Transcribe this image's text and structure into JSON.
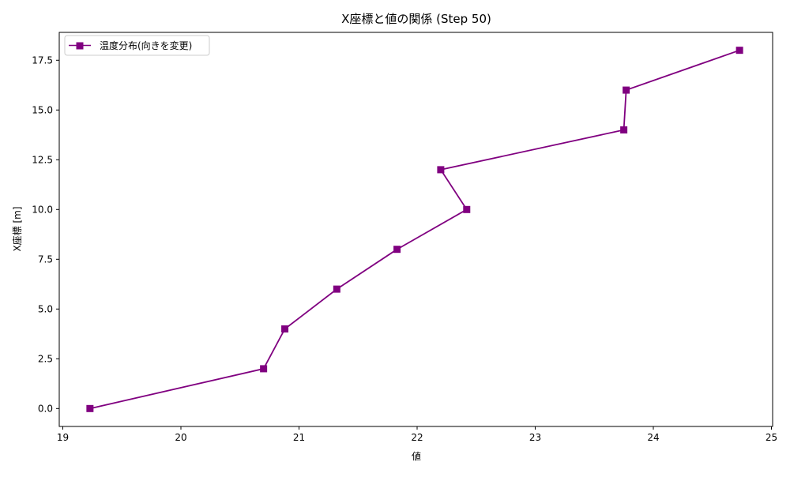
{
  "chart_data": {
    "type": "line",
    "title": "X座標と値の関係 (Step 50)",
    "xlabel": "値",
    "ylabel": "X座標 [m]",
    "xlim": [
      18.97,
      25.01
    ],
    "ylim": [
      -0.9,
      18.9
    ],
    "x_ticks": [
      19,
      20,
      21,
      22,
      23,
      24,
      25
    ],
    "x_tick_labels": [
      "19",
      "20",
      "21",
      "22",
      "23",
      "24",
      "25"
    ],
    "y_ticks": [
      0.0,
      2.5,
      5.0,
      7.5,
      10.0,
      12.5,
      15.0,
      17.5
    ],
    "y_tick_labels": [
      "0.0",
      "2.5",
      "5.0",
      "7.5",
      "10.0",
      "12.5",
      "15.0",
      "17.5"
    ],
    "grid": false,
    "legend_position": "top-left",
    "series": [
      {
        "name": "温度分布(向きを変更)",
        "color": "#800080",
        "marker": "square",
        "x": [
          19.23,
          20.7,
          20.88,
          21.32,
          21.83,
          22.42,
          22.2,
          23.75,
          23.77,
          24.73
        ],
        "y": [
          0,
          2,
          4,
          6,
          8,
          10,
          12,
          14,
          16,
          18
        ]
      }
    ]
  }
}
